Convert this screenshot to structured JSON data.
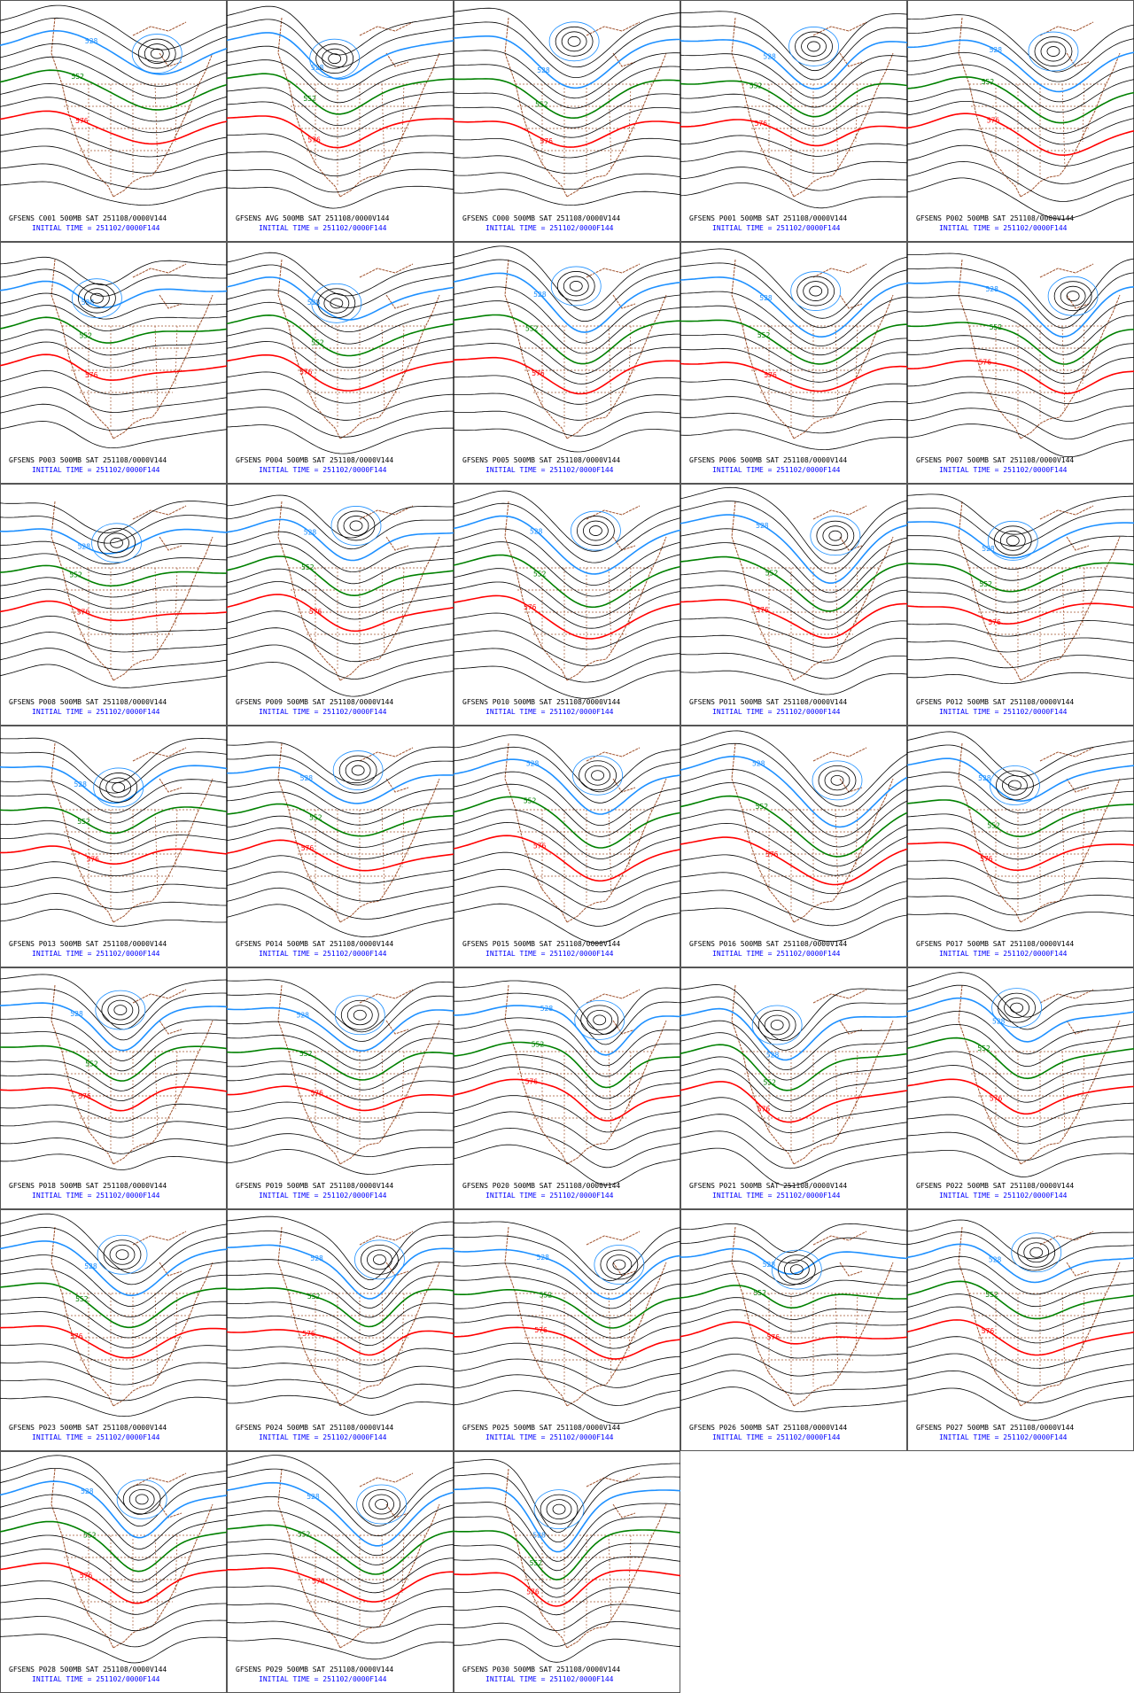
{
  "contour_labels": [
    528,
    552,
    576
  ],
  "panels": [
    {
      "label": "GFSENS C001 500MB SAT 251108/0000V144",
      "initial_time": "INITIAL TIME = 251102/0000F144"
    },
    {
      "label": "GFSENS AVG 500MB SAT 251108/0000V144",
      "initial_time": "INITIAL TIME = 251102/0000F144"
    },
    {
      "label": "GFSENS C000 500MB SAT 251108/0000V144",
      "initial_time": "INITIAL TIME = 251102/0000F144"
    },
    {
      "label": "GFSENS P001 500MB SAT 251108/0000V144",
      "initial_time": "INITIAL TIME = 251102/0000F144"
    },
    {
      "label": "GFSENS P002 500MB SAT 251108/0000V144",
      "initial_time": "INITIAL TIME = 251102/0000F144"
    },
    {
      "label": "GFSENS P003 500MB SAT 251108/0000V144",
      "initial_time": "INITIAL TIME = 251102/0000F144"
    },
    {
      "label": "GFSENS P004 500MB SAT 251108/0000V144",
      "initial_time": "INITIAL TIME = 251102/0000F144"
    },
    {
      "label": "GFSENS P005 500MB SAT 251108/0000V144",
      "initial_time": "INITIAL TIME = 251102/0000F144"
    },
    {
      "label": "GFSENS P006 500MB SAT 251108/0000V144",
      "initial_time": "INITIAL TIME = 251102/0000F144"
    },
    {
      "label": "GFSENS P007 500MB SAT 251108/0000V144",
      "initial_time": "INITIAL TIME = 251102/0000F144"
    },
    {
      "label": "GFSENS P008 500MB SAT 251108/0000V144",
      "initial_time": "INITIAL TIME = 251102/0000F144"
    },
    {
      "label": "GFSENS P009 500MB SAT 251108/0000V144",
      "initial_time": "INITIAL TIME = 251102/0000F144"
    },
    {
      "label": "GFSENS P010 500MB SAT 251108/0000V144",
      "initial_time": "INITIAL TIME = 251102/0000F144"
    },
    {
      "label": "GFSENS P011 500MB SAT 251108/0000V144",
      "initial_time": "INITIAL TIME = 251102/0000F144"
    },
    {
      "label": "GFSENS P012 500MB SAT 251108/0000V144",
      "initial_time": "INITIAL TIME = 251102/0000F144"
    },
    {
      "label": "GFSENS P013 500MB SAT 251108/0000V144",
      "initial_time": "INITIAL TIME = 251102/0000F144"
    },
    {
      "label": "GFSENS P014 500MB SAT 251108/0000V144",
      "initial_time": "INITIAL TIME = 251102/0000F144"
    },
    {
      "label": "GFSENS P015 500MB SAT 251108/0000V144",
      "initial_time": "INITIAL TIME = 251102/0000F144"
    },
    {
      "label": "GFSENS P016 500MB SAT 251108/0000V144",
      "initial_time": "INITIAL TIME = 251102/0000F144"
    },
    {
      "label": "GFSENS P017 500MB SAT 251108/0000V144",
      "initial_time": "INITIAL TIME = 251102/0000F144"
    },
    {
      "label": "GFSENS P018 500MB SAT 251108/0000V144",
      "initial_time": "INITIAL TIME = 251102/0000F144"
    },
    {
      "label": "GFSENS P019 500MB SAT 251108/0000V144",
      "initial_time": "INITIAL TIME = 251102/0000F144"
    },
    {
      "label": "GFSENS P020 500MB SAT 251108/0000V144",
      "initial_time": "INITIAL TIME = 251102/0000F144"
    },
    {
      "label": "GFSENS P021 500MB SAT 251108/0000V144",
      "initial_time": "INITIAL TIME = 251102/0000F144"
    },
    {
      "label": "GFSENS P022 500MB SAT 251108/0000V144",
      "initial_time": "INITIAL TIME = 251102/0000F144"
    },
    {
      "label": "GFSENS P023 500MB SAT 251108/0000V144",
      "initial_time": "INITIAL TIME = 251102/0000F144"
    },
    {
      "label": "GFSENS P024 500MB SAT 251108/0000V144",
      "initial_time": "INITIAL TIME = 251102/0000F144"
    },
    {
      "label": "GFSENS P025 500MB SAT 251108/0000V144",
      "initial_time": "INITIAL TIME = 251102/0000F144"
    },
    {
      "label": "GFSENS P026 500MB SAT 251108/0000V144",
      "initial_time": "INITIAL TIME = 251102/0000F144"
    },
    {
      "label": "GFSENS P027 500MB SAT 251108/0000V144",
      "initial_time": "INITIAL TIME = 251102/0000F144"
    },
    {
      "label": "GFSENS P028 500MB SAT 251108/0000V144",
      "initial_time": "INITIAL TIME = 251102/0000F144"
    },
    {
      "label": "GFSENS P029 500MB SAT 251108/0000V144",
      "initial_time": "INITIAL TIME = 251102/0000F144"
    },
    {
      "label": "GFSENS P030 500MB SAT 251108/0000V144",
      "initial_time": "INITIAL TIME = 251102/0000F144"
    }
  ]
}
